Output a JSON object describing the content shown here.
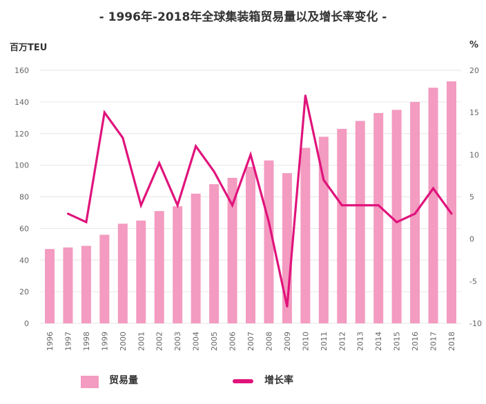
{
  "chart_data": {
    "type": "bar+line",
    "title": "- 1996年-2018年全球集装箱贸易量以及增长率变化 -",
    "ylabel_left": "百万TEU",
    "ylabel_right": "%",
    "ylim_left": [
      0,
      160
    ],
    "ylim_right": [
      -10,
      20
    ],
    "yticks_left": [
      0,
      20,
      40,
      60,
      80,
      100,
      120,
      140,
      160
    ],
    "yticks_right": [
      -10,
      -5,
      0,
      5,
      10,
      15,
      20
    ],
    "grid": true,
    "legend_position": "bottom",
    "categories": [
      "1996",
      "1997",
      "1998",
      "1999",
      "2000",
      "2001",
      "2002",
      "2003",
      "2004",
      "2005",
      "2006",
      "2007",
      "2008",
      "2009",
      "2010",
      "2011",
      "2012",
      "2013",
      "2014",
      "2015",
      "2016",
      "2017",
      "2018"
    ],
    "series": [
      {
        "name": "贸易量",
        "type": "bar",
        "axis": "left",
        "color": "#f39bc0",
        "values": [
          47,
          48,
          49,
          56,
          63,
          65,
          71,
          74,
          82,
          88,
          92,
          99,
          103,
          95,
          111,
          118,
          123,
          128,
          133,
          135,
          140,
          149,
          153
        ]
      },
      {
        "name": "增长率",
        "type": "line",
        "axis": "right",
        "color": "#e0137b",
        "values": [
          null,
          3,
          2,
          15,
          12,
          4,
          9,
          4,
          11,
          8,
          4,
          10,
          2,
          -8,
          17,
          7,
          4,
          4,
          4,
          2,
          3,
          6,
          3
        ]
      }
    ]
  }
}
